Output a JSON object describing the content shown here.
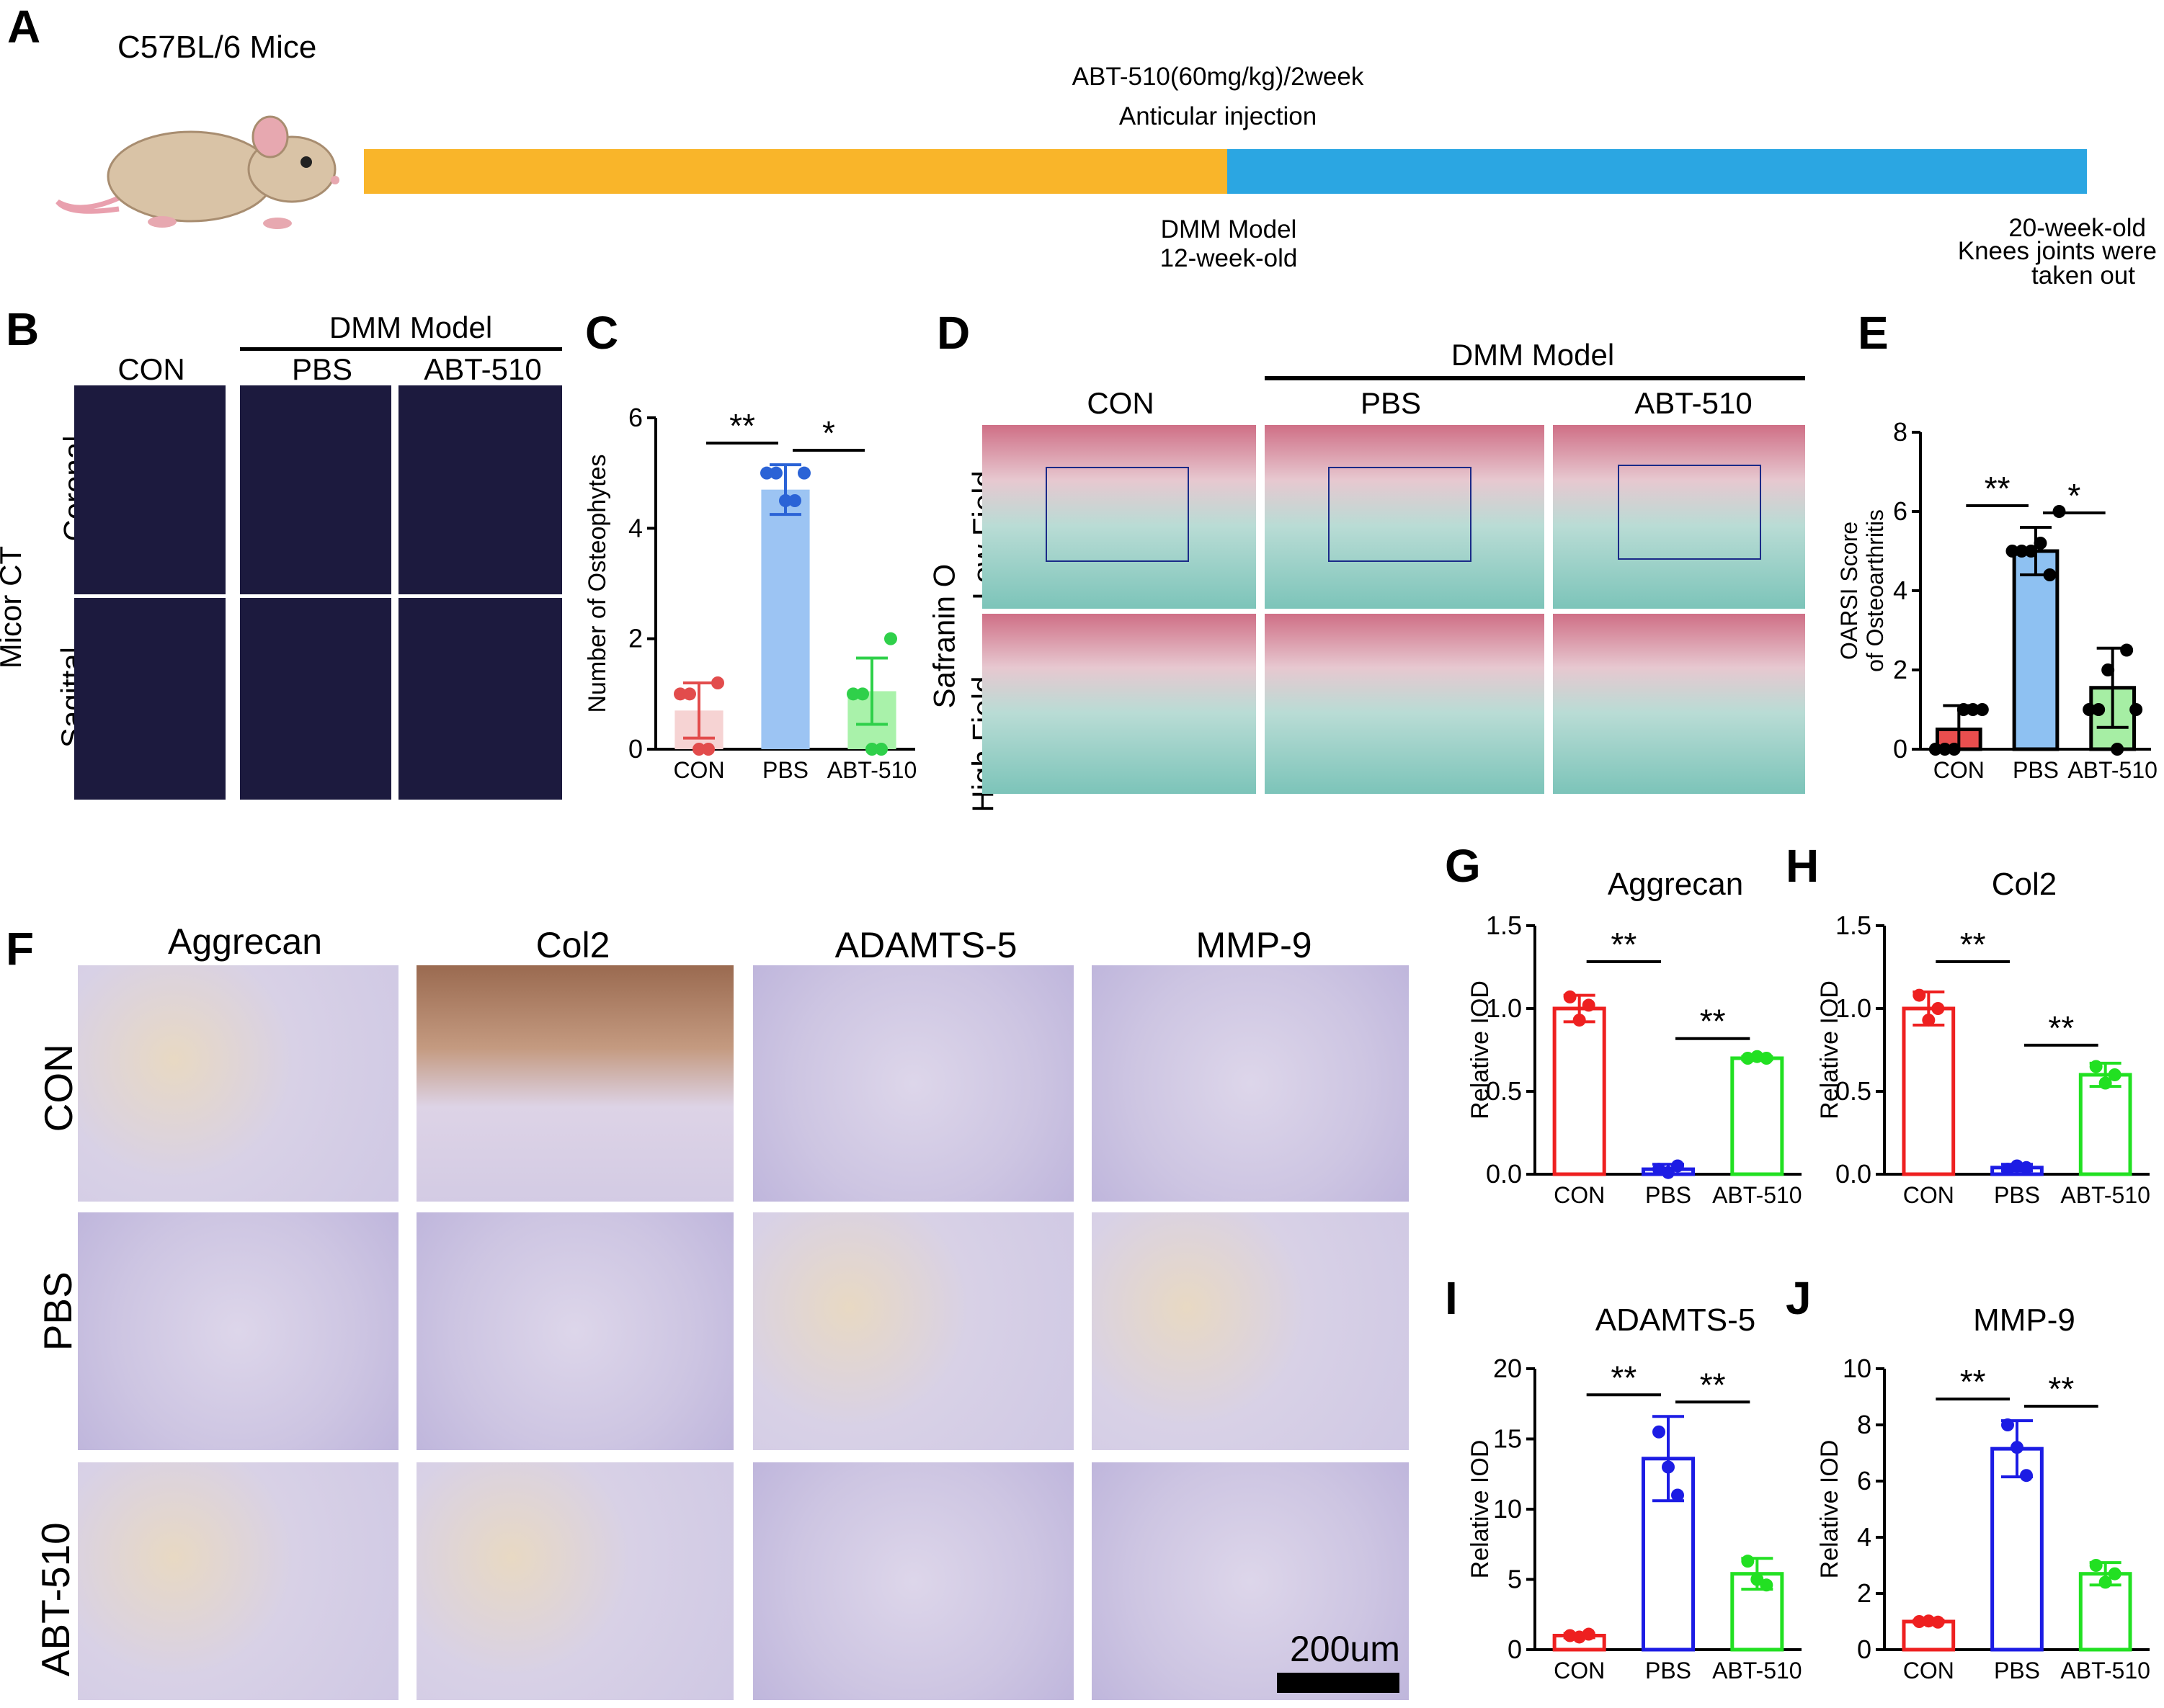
{
  "panels": {
    "A": "A",
    "B": "B",
    "C": "C",
    "D": "D",
    "E": "E",
    "F": "F",
    "G": "G",
    "H": "H",
    "I": "I",
    "J": "J"
  },
  "A": {
    "mouse_label": "C57BL/6 Mice",
    "treatment_line1": "ABT-510(60mg/kg)/2week",
    "treatment_line2": "Anticular injection",
    "model_line1": "DMM Model",
    "model_line2": "12-week-old",
    "end_line1": "20-week-old",
    "end_line2": "Knees joints were",
    "end_line3": "taken out",
    "colors": {
      "phase1": "#f9b52a",
      "phase2": "#2ba6e2"
    }
  },
  "B": {
    "group_header": "DMM Model",
    "columns": [
      "CON",
      "PBS",
      "ABT-510"
    ],
    "rows": [
      "Coronal",
      "Sagittal"
    ],
    "side_label": "Micor CT"
  },
  "D": {
    "group_header": "DMM Model",
    "columns": [
      "CON",
      "PBS",
      "ABT-510"
    ],
    "rows": [
      "Low Field",
      "High Field"
    ],
    "side_label": "Safranin O"
  },
  "F": {
    "columns": [
      "Aggrecan",
      "Col2",
      "ADAMTS-5",
      "MMP-9"
    ],
    "rows": [
      "CON",
      "PBS",
      "ABT-510"
    ],
    "scale_bar": "200um"
  },
  "chart_data": [
    {
      "panel": "C",
      "type": "bar",
      "categories": [
        "CON",
        "PBS",
        "ABT-510"
      ],
      "values": [
        0.7,
        4.7,
        1.05
      ],
      "errors": [
        0.5,
        0.45,
        0.6
      ],
      "points": [
        [
          1,
          1,
          0,
          0,
          1.2
        ],
        [
          5,
          5,
          4.5,
          4.5,
          5
        ],
        [
          1,
          1,
          0,
          0,
          2
        ]
      ],
      "title": "",
      "ylabel": "Number of Osteophytes",
      "ylim": [
        0,
        6
      ],
      "yticks": [
        0,
        2,
        4,
        6
      ],
      "colors": [
        "#e24c4c",
        "#2b63d6",
        "#2fd04a"
      ],
      "fills": [
        "#f6d3d3",
        "#9cc4f3",
        "#a9f2aa"
      ],
      "significance": [
        {
          "from": 0,
          "to": 1,
          "label": "**"
        },
        {
          "from": 1,
          "to": 2,
          "label": "*"
        }
      ]
    },
    {
      "panel": "E",
      "type": "bar",
      "categories": [
        "CON",
        "PBS",
        "ABT-510"
      ],
      "values": [
        0.5,
        5.0,
        1.55
      ],
      "errors": [
        0.6,
        0.6,
        1.0
      ],
      "points": [
        [
          0,
          0,
          0,
          1,
          1,
          1
        ],
        [
          5,
          5,
          5,
          5.2,
          4.4,
          6
        ],
        [
          1,
          1,
          2,
          0,
          2.5,
          1
        ]
      ],
      "title": "",
      "ylabel": "OARSI Score of Osteoarthritis",
      "ylabel_line1": "OARSI Score",
      "ylabel_line2": "of Osteoarthritis",
      "ylim": [
        0,
        8
      ],
      "yticks": [
        0,
        2,
        4,
        6,
        8
      ],
      "colors": [
        "#000000",
        "#000000",
        "#000000"
      ],
      "fills": [
        "#e94e4e",
        "#8ec1f2",
        "#a6eea4"
      ],
      "significance": [
        {
          "from": 0,
          "to": 1,
          "label": "**"
        },
        {
          "from": 1,
          "to": 2,
          "label": "*"
        }
      ]
    },
    {
      "panel": "G",
      "type": "bar",
      "categories": [
        "CON",
        "PBS",
        "ABT-510"
      ],
      "values": [
        1.0,
        0.03,
        0.7
      ],
      "errors": [
        0.08,
        0.03,
        0.01
      ],
      "points": [
        [
          1.07,
          0.93,
          1.02
        ],
        [
          0.03,
          0.01,
          0.05
        ],
        [
          0.7,
          0.71,
          0.7
        ]
      ],
      "title": "Aggrecan",
      "ylabel": "Relative IOD",
      "ylim": [
        0,
        1.5
      ],
      "yticks": [
        0.0,
        0.5,
        1.0,
        1.5
      ],
      "tick_format": 1,
      "colors": [
        "#ee2020",
        "#1c1ce4",
        "#22e022"
      ],
      "fills": [
        "none",
        "none",
        "none"
      ],
      "significance": [
        {
          "from": 0,
          "to": 1,
          "label": "**"
        },
        {
          "from": 1,
          "to": 2,
          "label": "**"
        }
      ]
    },
    {
      "panel": "H",
      "type": "bar",
      "categories": [
        "CON",
        "PBS",
        "ABT-510"
      ],
      "values": [
        1.0,
        0.04,
        0.6
      ],
      "errors": [
        0.1,
        0.02,
        0.07
      ],
      "points": [
        [
          1.08,
          0.93,
          1.0
        ],
        [
          0.03,
          0.05,
          0.04
        ],
        [
          0.65,
          0.55,
          0.6
        ]
      ],
      "title": "Col2",
      "ylabel": "Relative IOD",
      "ylim": [
        0,
        1.5
      ],
      "yticks": [
        0.0,
        0.5,
        1.0,
        1.5
      ],
      "tick_format": 1,
      "colors": [
        "#ee2020",
        "#1c1ce4",
        "#22e022"
      ],
      "fills": [
        "none",
        "none",
        "none"
      ],
      "significance": [
        {
          "from": 0,
          "to": 1,
          "label": "**"
        },
        {
          "from": 1,
          "to": 2,
          "label": "**"
        }
      ]
    },
    {
      "panel": "I",
      "type": "bar",
      "categories": [
        "CON",
        "PBS",
        "ABT-510"
      ],
      "values": [
        1.0,
        13.6,
        5.4
      ],
      "errors": [
        0.15,
        3.0,
        1.1
      ],
      "points": [
        [
          1.0,
          0.9,
          1.1
        ],
        [
          15.5,
          13.0,
          11.0
        ],
        [
          6.3,
          5.0,
          4.6
        ]
      ],
      "title": "ADAMTS-5",
      "ylabel": "Relative IOD",
      "ylim": [
        0,
        20
      ],
      "yticks": [
        0,
        5,
        10,
        15,
        20
      ],
      "tick_format": 0,
      "colors": [
        "#ee2020",
        "#1c1ce4",
        "#22e022"
      ],
      "fills": [
        "none",
        "none",
        "none"
      ],
      "significance": [
        {
          "from": 0,
          "to": 1,
          "label": "**"
        },
        {
          "from": 1,
          "to": 2,
          "label": "**"
        }
      ]
    },
    {
      "panel": "J",
      "type": "bar",
      "categories": [
        "CON",
        "PBS",
        "ABT-510"
      ],
      "values": [
        1.0,
        7.15,
        2.7
      ],
      "errors": [
        0.05,
        1.0,
        0.4
      ],
      "points": [
        [
          1.0,
          1.02,
          0.98
        ],
        [
          8.0,
          7.2,
          6.2
        ],
        [
          3.0,
          2.4,
          2.7
        ]
      ],
      "title": "MMP-9",
      "ylabel": "Relative IOD",
      "ylim": [
        0,
        10
      ],
      "yticks": [
        0,
        2,
        4,
        6,
        8,
        10
      ],
      "tick_format": 0,
      "colors": [
        "#ee2020",
        "#1c1ce4",
        "#22e022"
      ],
      "fills": [
        "none",
        "none",
        "none"
      ],
      "significance": [
        {
          "from": 0,
          "to": 1,
          "label": "**"
        },
        {
          "from": 1,
          "to": 2,
          "label": "**"
        }
      ]
    }
  ]
}
